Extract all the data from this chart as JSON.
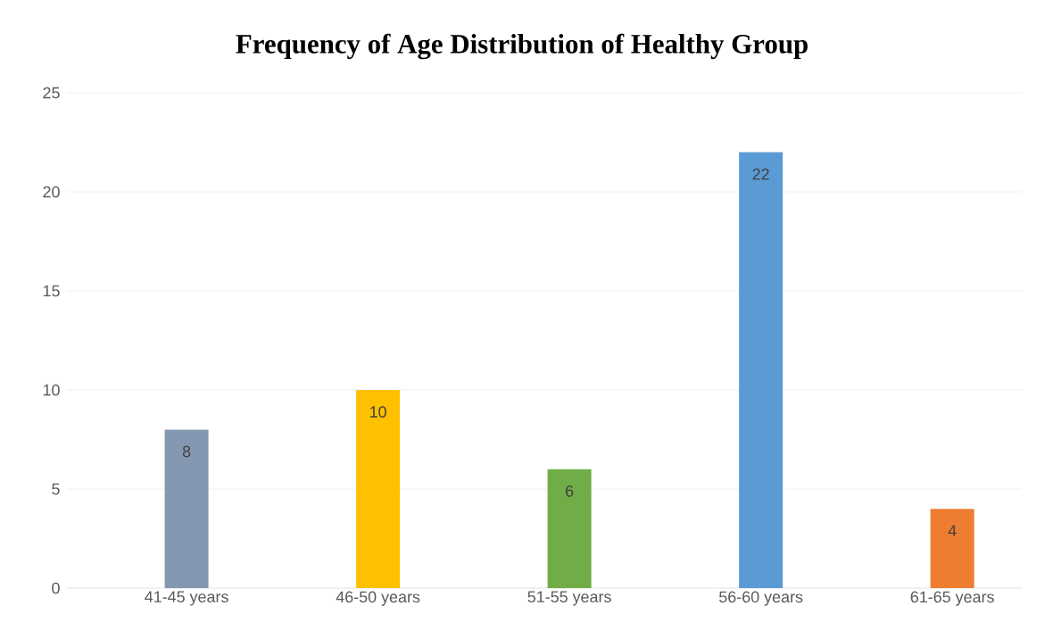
{
  "chart_data": {
    "type": "bar",
    "title": "Frequency of Age Distribution of Healthy Group",
    "categories": [
      "41-45 years",
      "46-50 years",
      "51-55 years",
      "56-60 years",
      "61-65 years"
    ],
    "values": [
      8,
      10,
      6,
      22,
      4
    ],
    "colors": [
      "#8497b0",
      "#ffc000",
      "#70ad47",
      "#5b9bd5",
      "#ed7d31"
    ],
    "ylim": [
      0,
      25
    ],
    "yticks": [
      0,
      5,
      10,
      15,
      20,
      25
    ],
    "grid": "y",
    "data_labels": true
  }
}
